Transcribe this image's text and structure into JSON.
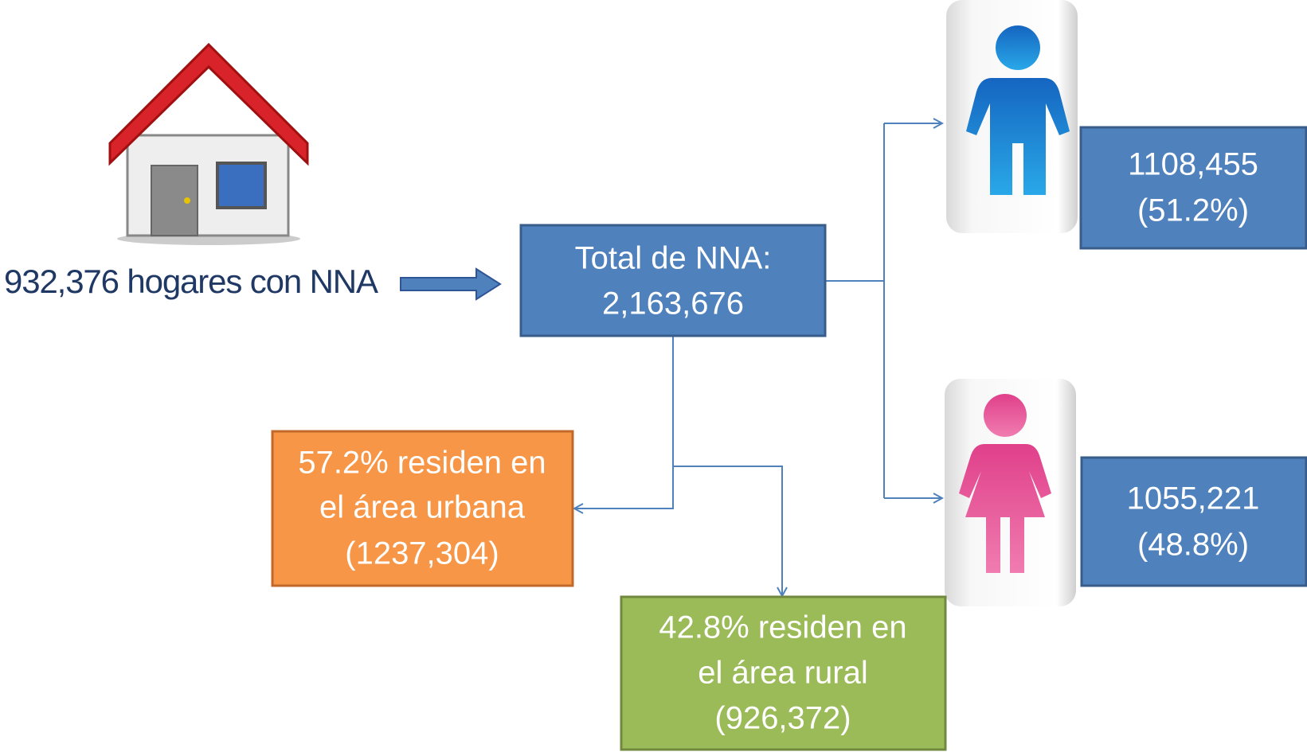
{
  "households": {
    "label": "932,376 hogares con NNA"
  },
  "total": {
    "lines": [
      "Total de NNA:",
      "2,163,676"
    ]
  },
  "boys": {
    "lines": [
      "1108,455",
      "(51.2%)"
    ]
  },
  "girls": {
    "lines": [
      "1055,221",
      "(48.8%)"
    ]
  },
  "urban": {
    "lines": [
      "57.2% residen en",
      "el área urbana",
      "(1237,304)"
    ]
  },
  "rural": {
    "lines": [
      "42.8% residen en",
      "el área rural",
      "(926,372)"
    ]
  }
}
